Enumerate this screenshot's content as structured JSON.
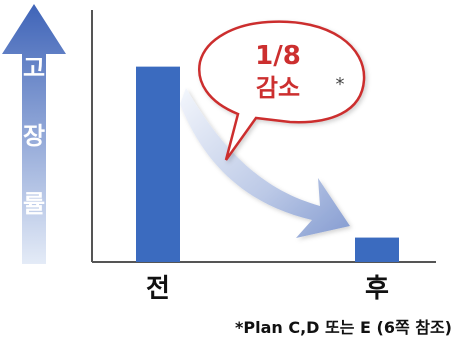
{
  "chart_data": {
    "type": "bar",
    "categories": [
      "전",
      "후"
    ],
    "values": [
      8,
      1
    ],
    "ylabel": "고장률",
    "ylim": [
      0,
      9.5
    ],
    "grid": false,
    "legend": "none",
    "colors": {
      "bar": "#3b6bbf",
      "arrow_top": "#3f64b8",
      "arrow_bottom": "#e4ebf7",
      "callout_border": "#cc2f2f",
      "callout_text": "#cc2f2f",
      "axis": "#555555"
    },
    "annotation": {
      "ratio": "1/8",
      "label": "감소",
      "marker": "*"
    },
    "footnote": "*Plan C,D 또는 E (6쪽 참조)"
  }
}
